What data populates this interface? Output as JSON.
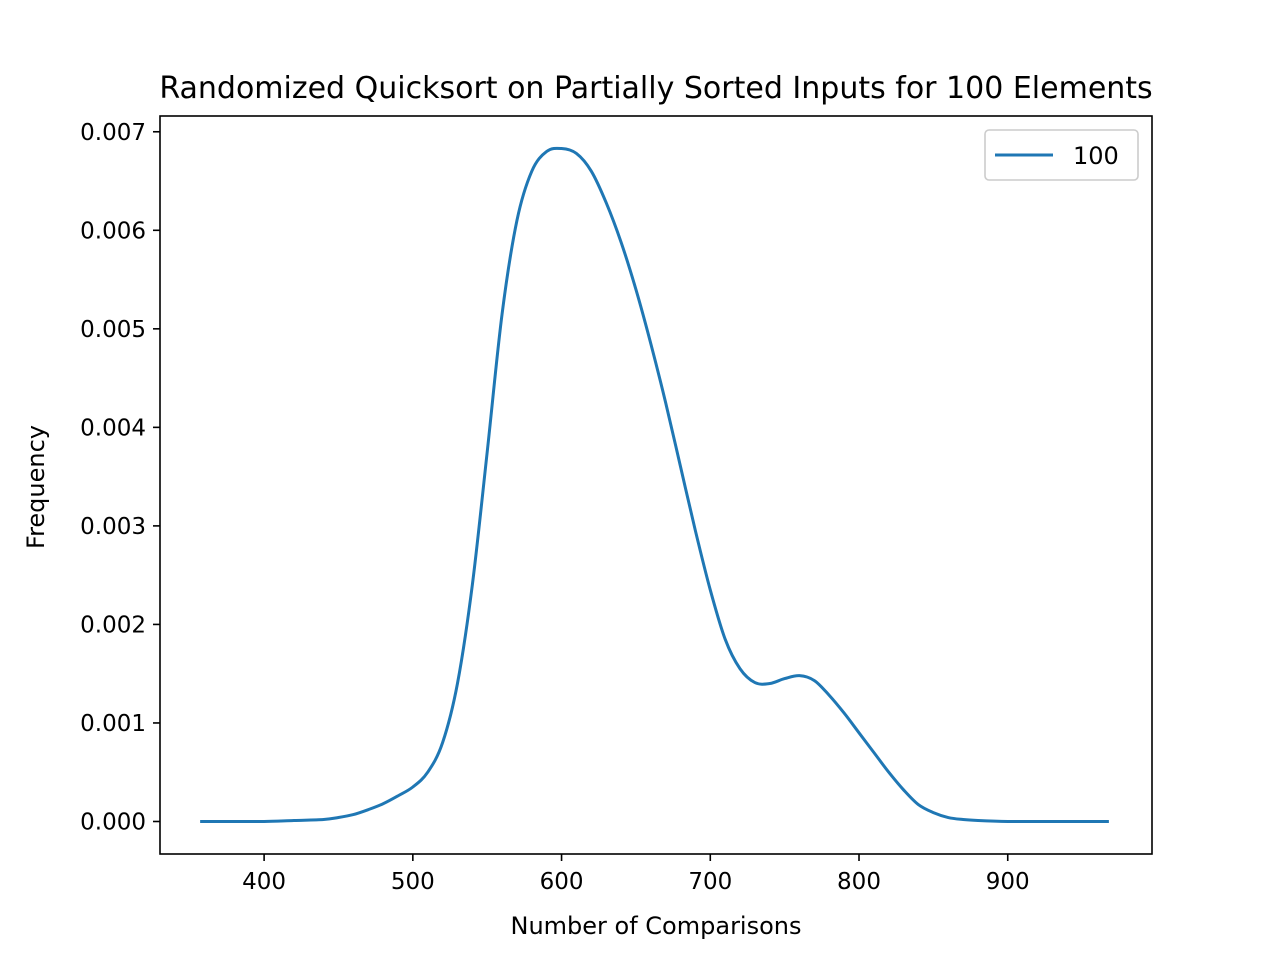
{
  "chart_data": {
    "type": "line",
    "title": "Randomized Quicksort on Partially Sorted Inputs for 100 Elements",
    "xlabel": "Number of Comparisons",
    "ylabel": "Frequency",
    "xlim": [
      330,
      997
    ],
    "ylim": [
      -0.00033,
      0.00716
    ],
    "xticks": [
      400,
      500,
      600,
      700,
      800,
      900
    ],
    "xtick_labels": [
      "400",
      "500",
      "600",
      "700",
      "800",
      "900"
    ],
    "yticks": [
      0.0,
      0.001,
      0.002,
      0.003,
      0.004,
      0.005,
      0.006,
      0.007
    ],
    "ytick_labels": [
      "0.000",
      "0.001",
      "0.002",
      "0.003",
      "0.004",
      "0.005",
      "0.006",
      "0.007"
    ],
    "grid": false,
    "legend_position": "upper right",
    "series": [
      {
        "name": "100",
        "color": "#1f77b4",
        "x": [
          358,
          380,
          400,
          420,
          440,
          450,
          460,
          470,
          480,
          490,
          500,
          510,
          520,
          530,
          540,
          550,
          560,
          570,
          580,
          590,
          600,
          610,
          620,
          630,
          640,
          650,
          660,
          670,
          680,
          690,
          700,
          710,
          720,
          730,
          740,
          750,
          760,
          770,
          780,
          790,
          800,
          810,
          820,
          830,
          840,
          850,
          860,
          870,
          880,
          900,
          920,
          940,
          967
        ],
        "y": [
          0.0,
          0.0,
          0.0,
          1e-05,
          2e-05,
          4e-05,
          7e-05,
          0.00012,
          0.00018,
          0.00026,
          0.00035,
          0.0005,
          0.0008,
          0.0014,
          0.0024,
          0.00375,
          0.00515,
          0.0061,
          0.0066,
          0.0068,
          0.00683,
          0.00678,
          0.0066,
          0.00628,
          0.00588,
          0.0054,
          0.00485,
          0.00425,
          0.0036,
          0.00295,
          0.00235,
          0.00185,
          0.00155,
          0.00141,
          0.0014,
          0.00145,
          0.00148,
          0.00143,
          0.00128,
          0.0011,
          0.0009,
          0.0007,
          0.0005,
          0.00032,
          0.00017,
          9e-05,
          4e-05,
          2e-05,
          1e-05,
          0.0,
          0.0,
          0.0,
          0.0
        ]
      }
    ]
  }
}
